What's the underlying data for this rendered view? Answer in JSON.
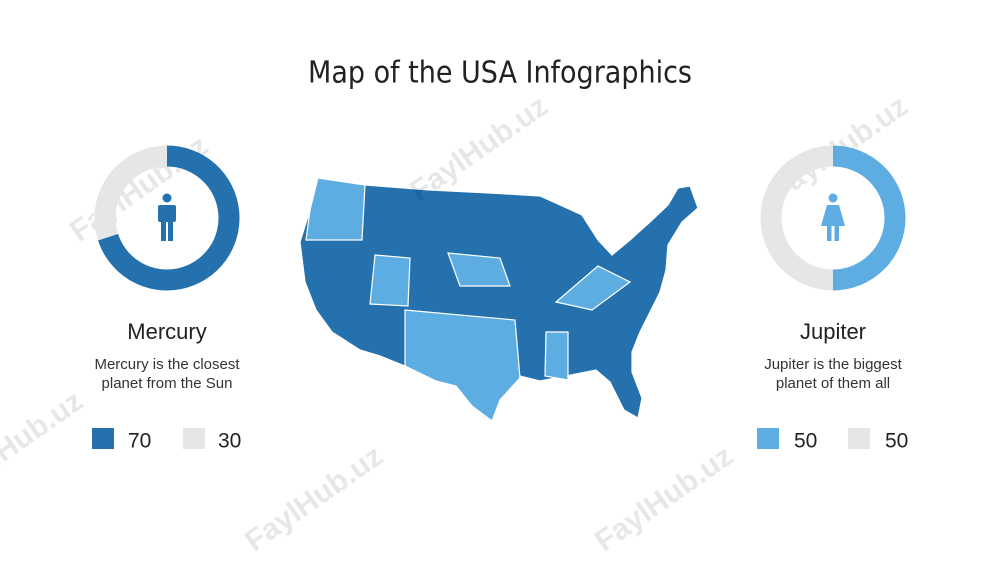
{
  "title": "Map of the USA Infographics",
  "watermark": "FaylHub.uz",
  "panels": [
    {
      "name": "Mercury",
      "text": [
        "Mercury is the closest",
        "planet from the Sun"
      ],
      "values": [
        70,
        30
      ],
      "colors": [
        "#2471ae",
        "#e6e6e6"
      ]
    },
    {
      "name": "Jupiter",
      "text": [
        "Jupiter is the biggest",
        "planet of them all"
      ],
      "values": [
        50,
        50
      ],
      "colors": [
        "#5dade2",
        "#e6e6e6"
      ]
    }
  ]
}
